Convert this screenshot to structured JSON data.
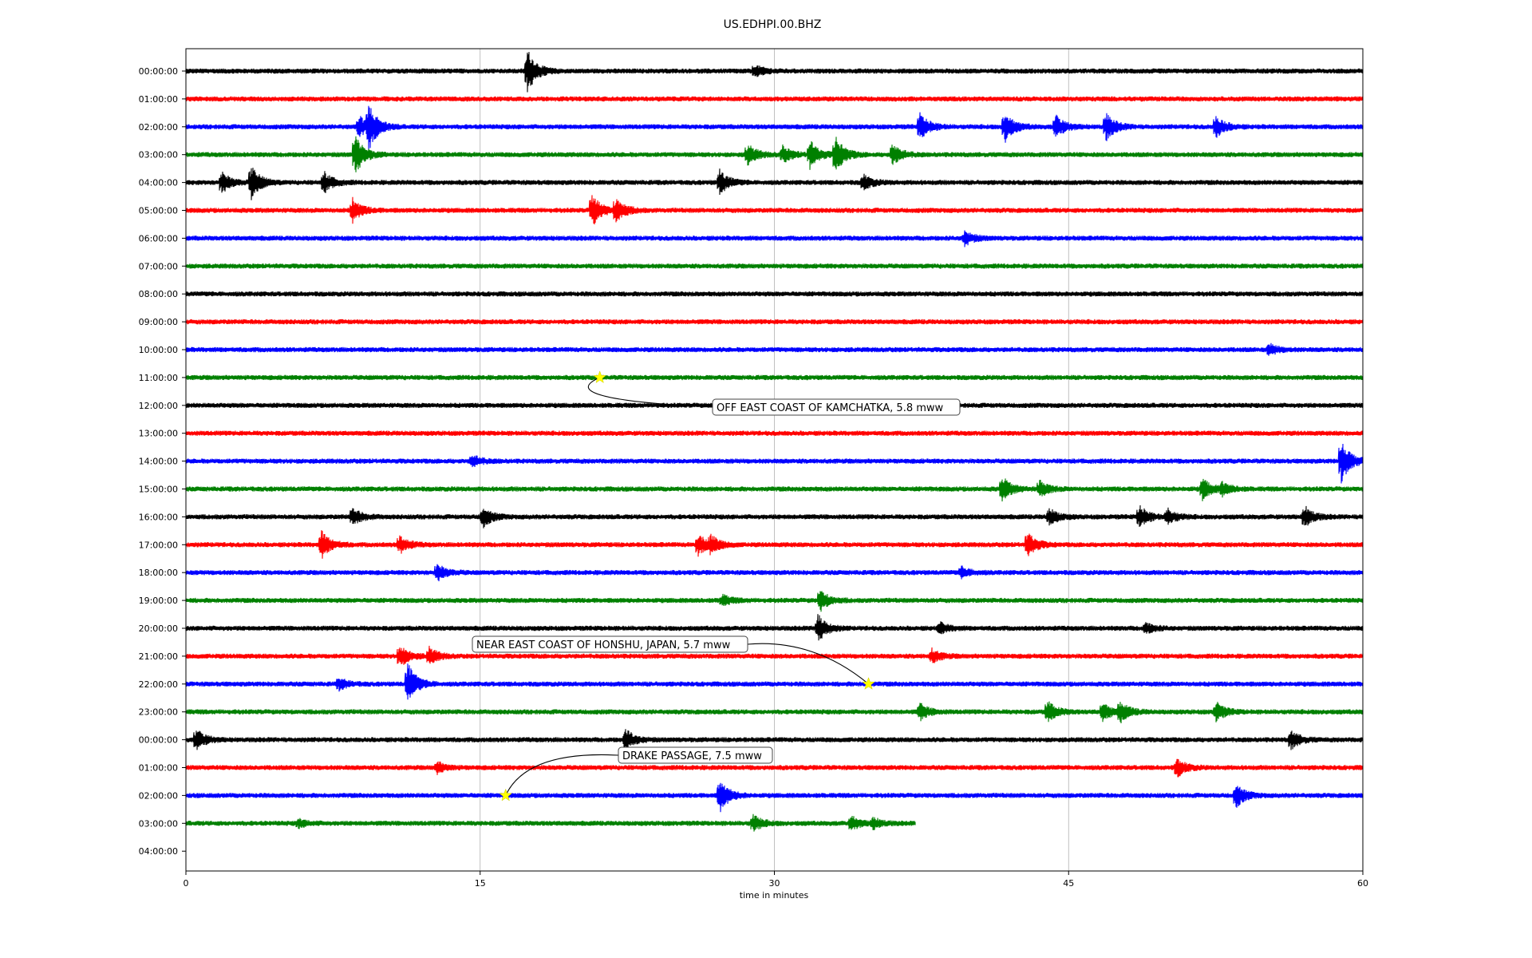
{
  "chart_data": {
    "type": "line",
    "title": "US.EDHPI.00.BHZ",
    "xlabel": "time in minutes",
    "ylabel": "",
    "xlim": [
      0,
      60
    ],
    "x_ticks": [
      0,
      15,
      30,
      45,
      60
    ],
    "grid": "vertical lines at x ticks",
    "trace_colors": [
      "#000000",
      "#ff0000",
      "#0000ff",
      "#008000"
    ],
    "rows": [
      {
        "label": "00:00:00",
        "end": 60,
        "events": [
          {
            "t": 17.4,
            "a": 1.6
          },
          {
            "t": 29.0,
            "a": 0.4
          }
        ]
      },
      {
        "label": "01:00:00",
        "end": 60,
        "events": []
      },
      {
        "label": "02:00:00",
        "end": 60,
        "events": [
          {
            "t": 9.3,
            "a": 1.8
          },
          {
            "t": 8.8,
            "a": 0.8
          },
          {
            "t": 37.4,
            "a": 1.0
          },
          {
            "t": 41.7,
            "a": 1.2
          },
          {
            "t": 44.3,
            "a": 0.9
          },
          {
            "t": 46.9,
            "a": 1.0
          },
          {
            "t": 52.5,
            "a": 0.8
          }
        ]
      },
      {
        "label": "03:00:00",
        "end": 60,
        "events": [
          {
            "t": 8.6,
            "a": 1.5
          },
          {
            "t": 28.6,
            "a": 0.8
          },
          {
            "t": 30.4,
            "a": 0.6
          },
          {
            "t": 31.8,
            "a": 1.0
          },
          {
            "t": 33.1,
            "a": 1.4
          },
          {
            "t": 36.0,
            "a": 0.8
          }
        ]
      },
      {
        "label": "04:00:00",
        "end": 60,
        "events": [
          {
            "t": 1.8,
            "a": 0.8
          },
          {
            "t": 3.3,
            "a": 1.3
          },
          {
            "t": 7.0,
            "a": 0.8
          },
          {
            "t": 27.2,
            "a": 0.9
          },
          {
            "t": 34.5,
            "a": 0.6
          }
        ]
      },
      {
        "label": "05:00:00",
        "end": 60,
        "events": [
          {
            "t": 8.5,
            "a": 0.8
          },
          {
            "t": 20.7,
            "a": 1.2
          },
          {
            "t": 21.9,
            "a": 1.0
          }
        ]
      },
      {
        "label": "06:00:00",
        "end": 60,
        "events": [
          {
            "t": 39.7,
            "a": 0.5
          }
        ]
      },
      {
        "label": "07:00:00",
        "end": 60,
        "events": []
      },
      {
        "label": "08:00:00",
        "end": 60,
        "events": []
      },
      {
        "label": "09:00:00",
        "end": 60,
        "events": []
      },
      {
        "label": "10:00:00",
        "end": 60,
        "events": [
          {
            "t": 55.2,
            "a": 0.4
          }
        ]
      },
      {
        "label": "11:00:00",
        "end": 60,
        "events": []
      },
      {
        "label": "12:00:00",
        "end": 60,
        "events": []
      },
      {
        "label": "13:00:00",
        "end": 60,
        "events": []
      },
      {
        "label": "14:00:00",
        "end": 60,
        "events": [
          {
            "t": 14.6,
            "a": 0.4
          },
          {
            "t": 58.9,
            "a": 1.6
          }
        ]
      },
      {
        "label": "15:00:00",
        "end": 60,
        "events": [
          {
            "t": 41.6,
            "a": 0.9
          },
          {
            "t": 43.5,
            "a": 0.6
          },
          {
            "t": 51.8,
            "a": 0.8
          },
          {
            "t": 52.8,
            "a": 0.5
          }
        ]
      },
      {
        "label": "16:00:00",
        "end": 60,
        "events": [
          {
            "t": 8.5,
            "a": 0.6
          },
          {
            "t": 15.1,
            "a": 0.8
          },
          {
            "t": 44.0,
            "a": 0.6
          },
          {
            "t": 48.6,
            "a": 0.8
          },
          {
            "t": 50.0,
            "a": 0.6
          },
          {
            "t": 57.0,
            "a": 0.8
          }
        ]
      },
      {
        "label": "17:00:00",
        "end": 60,
        "events": [
          {
            "t": 6.9,
            "a": 1.0
          },
          {
            "t": 10.9,
            "a": 0.6
          },
          {
            "t": 26.1,
            "a": 0.8
          },
          {
            "t": 26.7,
            "a": 0.8
          },
          {
            "t": 42.9,
            "a": 0.9
          }
        ]
      },
      {
        "label": "18:00:00",
        "end": 60,
        "events": [
          {
            "t": 12.8,
            "a": 0.6
          },
          {
            "t": 39.5,
            "a": 0.4
          }
        ]
      },
      {
        "label": "19:00:00",
        "end": 60,
        "events": [
          {
            "t": 32.3,
            "a": 0.8
          },
          {
            "t": 27.3,
            "a": 0.4
          }
        ]
      },
      {
        "label": "20:00:00",
        "end": 60,
        "events": [
          {
            "t": 32.2,
            "a": 1.0
          },
          {
            "t": 38.4,
            "a": 0.4
          },
          {
            "t": 48.9,
            "a": 0.4
          }
        ]
      },
      {
        "label": "21:00:00",
        "end": 60,
        "events": [
          {
            "t": 10.9,
            "a": 0.8
          },
          {
            "t": 12.4,
            "a": 0.6
          },
          {
            "t": 38.0,
            "a": 0.5
          }
        ]
      },
      {
        "label": "22:00:00",
        "end": 60,
        "events": [
          {
            "t": 11.3,
            "a": 1.5
          },
          {
            "t": 7.8,
            "a": 0.4
          }
        ]
      },
      {
        "label": "23:00:00",
        "end": 60,
        "events": [
          {
            "t": 37.4,
            "a": 0.6
          },
          {
            "t": 43.9,
            "a": 0.8
          },
          {
            "t": 46.7,
            "a": 0.7
          },
          {
            "t": 47.6,
            "a": 0.8
          },
          {
            "t": 52.5,
            "a": 0.7
          }
        ]
      },
      {
        "label": "00:00:00",
        "end": 60,
        "events": [
          {
            "t": 0.5,
            "a": 0.8
          },
          {
            "t": 22.4,
            "a": 0.8
          },
          {
            "t": 56.3,
            "a": 0.7
          }
        ]
      },
      {
        "label": "01:00:00",
        "end": 60,
        "events": [
          {
            "t": 12.8,
            "a": 0.4
          },
          {
            "t": 50.5,
            "a": 0.7
          }
        ]
      },
      {
        "label": "02:00:00",
        "end": 60,
        "events": [
          {
            "t": 27.2,
            "a": 1.2
          },
          {
            "t": 53.5,
            "a": 0.9
          }
        ]
      },
      {
        "label": "03:00:00",
        "end": 37.2,
        "events": [
          {
            "t": 5.7,
            "a": 0.3
          },
          {
            "t": 28.9,
            "a": 0.6
          },
          {
            "t": 33.9,
            "a": 0.5
          },
          {
            "t": 35.0,
            "a": 0.4
          }
        ]
      },
      {
        "label": "04:00:00",
        "end": 0,
        "events": []
      }
    ],
    "annotations": [
      {
        "text": "OFF EAST COAST OF KAMCHATKA, 5.8 mww",
        "t": 21.1,
        "row": 11
      },
      {
        "text": "NEAR EAST COAST OF HONSHU, JAPAN, 5.7 mww",
        "t": 34.8,
        "row": 22
      },
      {
        "text": "DRAKE PASSAGE, 7.5 mww",
        "t": 16.3,
        "row": 26
      }
    ]
  }
}
